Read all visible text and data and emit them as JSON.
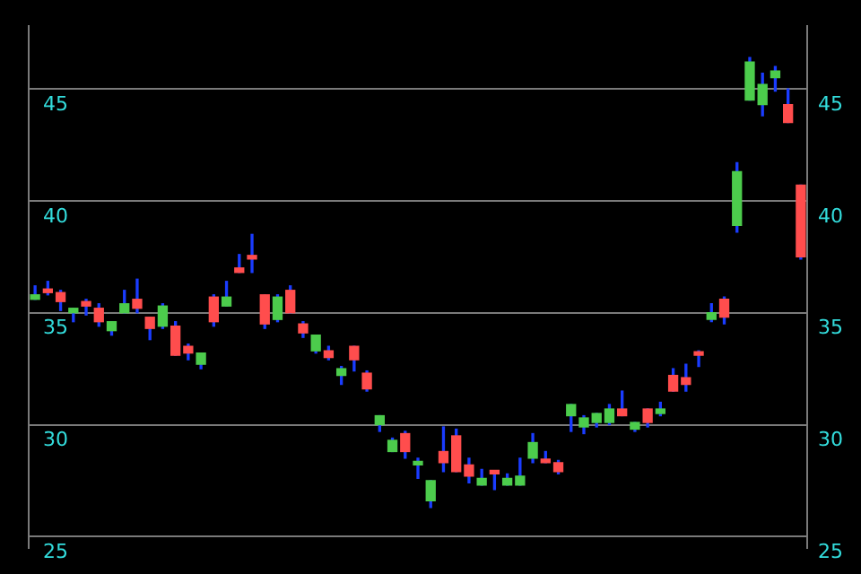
{
  "chart_data": {
    "type": "candlestick",
    "categories": [
      null,
      null,
      null,
      null,
      null,
      null,
      null,
      null,
      null,
      null,
      null,
      null,
      null,
      null,
      null,
      null,
      null,
      null,
      null,
      null,
      null,
      null,
      null,
      null,
      null,
      null,
      null,
      null,
      null,
      null,
      null,
      null,
      null,
      null,
      null,
      null,
      null,
      null,
      null,
      null,
      null,
      null,
      null,
      null,
      null,
      null,
      null,
      null,
      null,
      null,
      null,
      null,
      null,
      null,
      null,
      null,
      null,
      null,
      null,
      null,
      null
    ],
    "ohlc": [
      [
        35.6,
        36.2,
        35.6,
        35.8
      ],
      [
        36.0,
        36.4,
        35.8,
        35.9
      ],
      [
        35.9,
        36.0,
        35.1,
        35.5
      ],
      [
        35.0,
        35.2,
        34.6,
        35.2
      ],
      [
        35.5,
        35.6,
        34.9,
        35.3
      ],
      [
        35.2,
        35.4,
        34.4,
        34.6
      ],
      [
        34.2,
        34.6,
        34.0,
        34.6
      ],
      [
        35.0,
        36.0,
        35.0,
        35.4
      ],
      [
        35.6,
        36.5,
        35.0,
        35.2
      ],
      [
        34.8,
        34.8,
        33.8,
        34.3
      ],
      [
        34.4,
        35.4,
        34.3,
        35.3
      ],
      [
        34.4,
        34.6,
        33.1,
        33.1
      ],
      [
        33.5,
        33.6,
        32.9,
        33.2
      ],
      [
        32.7,
        33.2,
        32.5,
        33.2
      ],
      [
        35.7,
        35.8,
        34.4,
        34.6
      ],
      [
        35.3,
        36.4,
        35.3,
        35.7
      ],
      [
        37.0,
        37.6,
        36.8,
        36.8
      ],
      [
        37.5,
        38.5,
        36.8,
        37.4
      ],
      [
        35.8,
        35.8,
        34.3,
        34.5
      ],
      [
        34.7,
        35.8,
        34.6,
        35.7
      ],
      [
        36.0,
        36.2,
        35.0,
        35.0
      ],
      [
        34.5,
        34.6,
        33.9,
        34.1
      ],
      [
        33.3,
        34.0,
        33.2,
        34.0
      ],
      [
        33.3,
        33.5,
        32.9,
        33.0
      ],
      [
        32.2,
        32.6,
        31.8,
        32.5
      ],
      [
        33.5,
        33.5,
        32.4,
        32.9
      ],
      [
        32.3,
        32.4,
        31.5,
        31.6
      ],
      [
        30.0,
        30.4,
        29.7,
        30.4
      ],
      [
        28.8,
        29.4,
        28.8,
        29.3
      ],
      [
        29.6,
        29.7,
        28.5,
        28.8
      ],
      [
        28.2,
        28.5,
        27.6,
        28.3
      ],
      [
        26.6,
        27.5,
        26.3,
        27.5
      ],
      [
        28.8,
        29.9,
        27.9,
        28.3
      ],
      [
        29.5,
        29.8,
        27.9,
        27.9
      ],
      [
        28.2,
        28.5,
        27.4,
        27.7
      ],
      [
        27.3,
        28.0,
        27.3,
        27.6
      ],
      [
        27.9,
        27.9,
        27.1,
        27.8
      ],
      [
        27.3,
        27.8,
        27.3,
        27.6
      ],
      [
        27.3,
        28.5,
        27.3,
        27.7
      ],
      [
        28.5,
        29.6,
        28.3,
        29.2
      ],
      [
        28.4,
        28.8,
        28.3,
        28.3
      ],
      [
        28.3,
        28.4,
        27.8,
        27.9
      ],
      [
        30.4,
        30.9,
        29.7,
        30.9
      ],
      [
        29.9,
        30.4,
        29.6,
        30.3
      ],
      [
        30.1,
        30.5,
        29.9,
        30.5
      ],
      [
        30.1,
        30.9,
        30.0,
        30.7
      ],
      [
        30.7,
        31.5,
        30.4,
        30.4
      ],
      [
        29.8,
        30.1,
        29.7,
        30.1
      ],
      [
        30.7,
        30.7,
        29.9,
        30.1
      ],
      [
        30.5,
        31.0,
        30.4,
        30.7
      ],
      [
        32.2,
        32.5,
        31.5,
        31.5
      ],
      [
        32.1,
        32.7,
        31.5,
        31.8
      ],
      [
        33.2,
        33.3,
        32.6,
        33.1
      ],
      [
        34.7,
        35.4,
        34.6,
        35.0
      ],
      [
        35.6,
        35.7,
        34.5,
        34.8
      ],
      [
        38.9,
        41.7,
        38.6,
        41.3
      ],
      [
        44.5,
        46.4,
        44.5,
        46.2
      ],
      [
        44.3,
        45.7,
        43.8,
        45.2
      ],
      [
        45.5,
        46.0,
        44.9,
        45.8
      ],
      [
        44.3,
        45.0,
        43.5,
        43.5
      ],
      [
        40.7,
        40.7,
        37.4,
        37.5
      ]
    ],
    "ylim": [
      24.5,
      47.8
    ],
    "yticks": [
      25,
      30,
      35,
      40,
      45
    ],
    "y2lim": [
      24.5,
      47.8
    ],
    "y2ticks": [
      25,
      30,
      35,
      40,
      45
    ],
    "grid": "y",
    "tick_labels": "y"
  }
}
